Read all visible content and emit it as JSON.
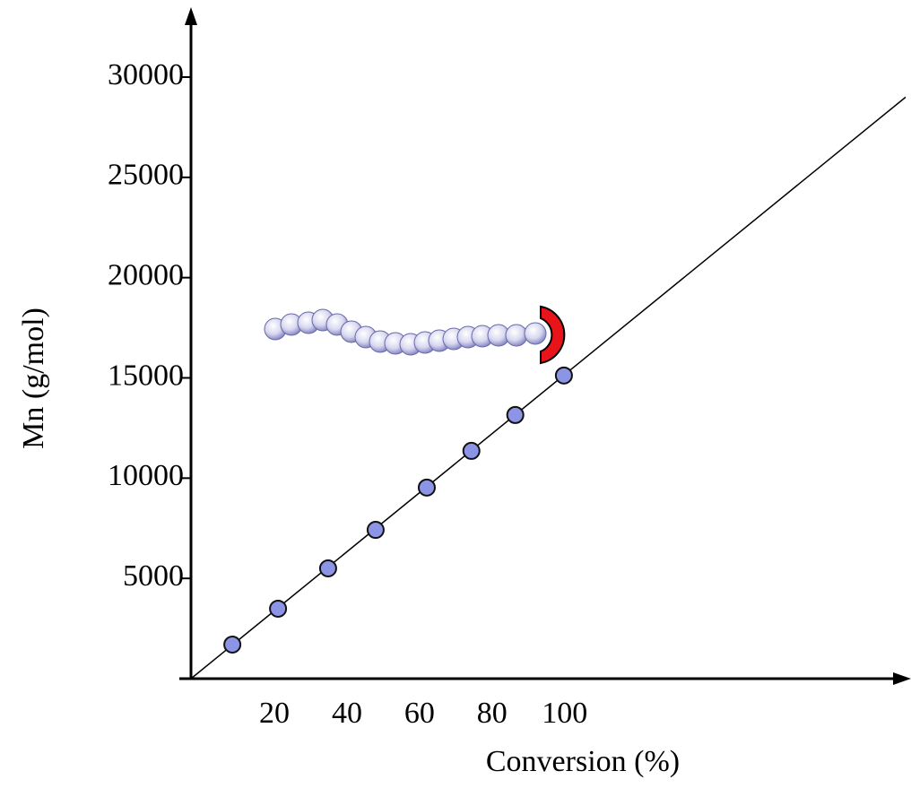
{
  "chart_data": {
    "type": "scatter",
    "x_label": "Conversion (%)",
    "y_label": "Mn (g/mol)",
    "xlim": [
      -3,
      194
    ],
    "ylim": [
      0,
      30000
    ],
    "xticks": [
      20,
      40,
      60,
      80,
      100
    ],
    "yticks": [
      5000,
      10000,
      15000,
      20000,
      25000,
      30000
    ],
    "series": [
      {
        "color": "#8c94e6",
        "x": [
          8.4,
          21,
          34.8,
          47.9,
          62,
          74.3,
          86.4,
          99.8
        ],
        "values": [
          1700,
          3490,
          5500,
          7420,
          9530,
          11360,
          13150,
          15120
        ]
      }
    ],
    "trend_line": {
      "color": "#000000",
      "x": [
        -3,
        194
      ],
      "values": [
        0,
        29000
      ]
    }
  }
}
